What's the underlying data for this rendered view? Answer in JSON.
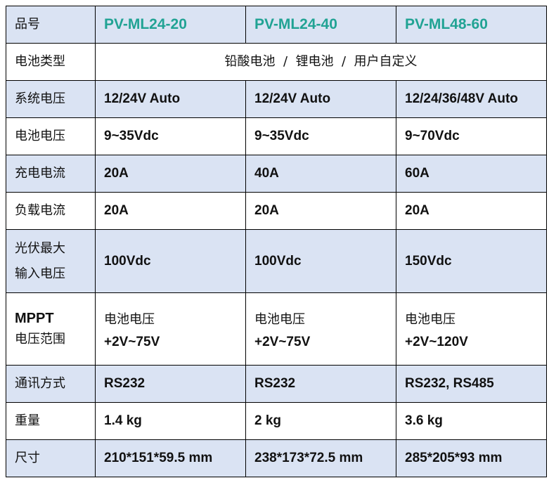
{
  "header": {
    "label": "品号",
    "models": [
      "PV-ML24-20",
      "PV-ML24-40",
      "PV-ML48-60"
    ]
  },
  "battery_type": {
    "label": "电池类型",
    "value": "铅酸电池  /  锂电池  /  用户自定义"
  },
  "rows": [
    {
      "label": "系统电压",
      "values": [
        "12/24V Auto",
        "12/24V Auto",
        "12/24/36/48V Auto"
      ]
    },
    {
      "label": "电池电压",
      "values": [
        "9~35Vdc",
        "9~35Vdc",
        "9~70Vdc"
      ]
    },
    {
      "label": "充电电流",
      "values": [
        "20A",
        "40A",
        "60A"
      ]
    },
    {
      "label": "负载电流",
      "values": [
        "20A",
        "20A",
        "20A"
      ]
    }
  ],
  "pv": {
    "label_line1": "光伏最大",
    "label_line2": "输入电压",
    "values": [
      "100Vdc",
      "100Vdc",
      "150Vdc"
    ]
  },
  "mppt": {
    "label_line1": "MPPT",
    "label_line2": "电压范围",
    "prefix": "电池电压",
    "values": [
      "+2V~75V",
      "+2V~75V",
      "+2V~120V"
    ]
  },
  "rows2": [
    {
      "label": "通讯方式",
      "values": [
        "RS232",
        "RS232",
        "RS232, RS485"
      ]
    },
    {
      "label": "重量",
      "values": [
        "1.4 kg",
        "2 kg",
        "3.6 kg"
      ]
    },
    {
      "label": "尺寸",
      "values": [
        "210*151*59.5 mm",
        "238*173*72.5 mm",
        "285*205*93 mm"
      ]
    }
  ],
  "colors": {
    "header_bg": "#dae3f3",
    "model_text": "#21a394"
  }
}
